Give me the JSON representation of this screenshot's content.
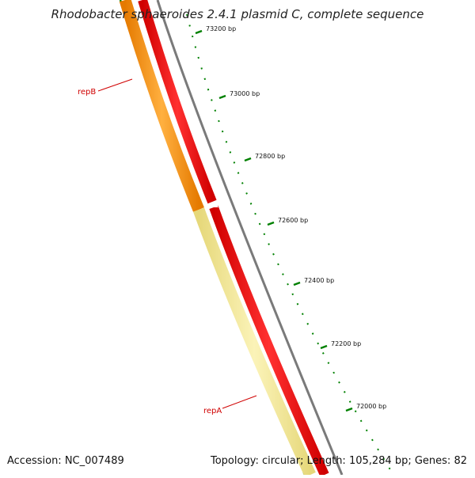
{
  "title": "Rhodobacter sphaeroides 2.4.1 plasmid C, complete sequence",
  "footer": {
    "accession": "Accession: NC_007489",
    "topology": "Topology: circular; Length: 105,284 bp; Genes: 82"
  },
  "ruler": {
    "color": "#008000",
    "ticks": [
      {
        "label": "73200 bp"
      },
      {
        "label": "73000 bp"
      },
      {
        "label": "72800 bp"
      },
      {
        "label": "72600 bp"
      },
      {
        "label": "72400 bp"
      },
      {
        "label": "72200 bp"
      },
      {
        "label": "72000 bp"
      }
    ]
  },
  "features": [
    {
      "name": "repB",
      "color": "#FF8C00",
      "label_color": "#D00000"
    },
    {
      "name": "repA",
      "color": "#F0E68C",
      "label_color": "#D00000"
    }
  ],
  "tracks": {
    "forward_cds_color": "#FF0000",
    "backbone_color": "#808080",
    "gc_skew_color": "#008000"
  }
}
